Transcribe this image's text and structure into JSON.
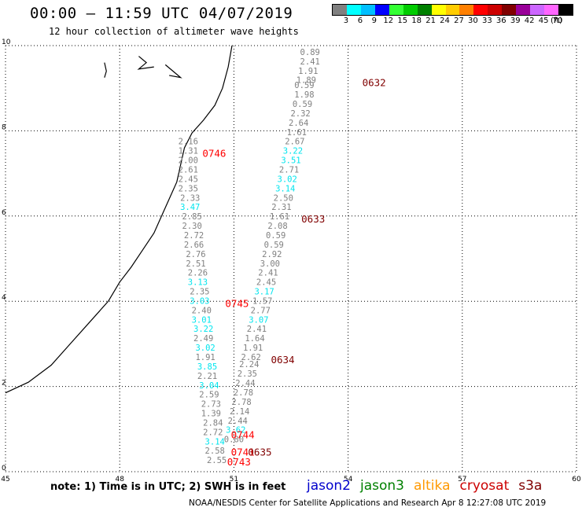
{
  "header": {
    "title": "00:00 – 11:59 UTC 04/07/2019",
    "subtitle": "12 hour collection of altimeter wave heights"
  },
  "legend": {
    "unit": "(ft)",
    "colors": [
      "#808080",
      "#00ffff",
      "#00bfff",
      "#0000ff",
      "#33ff33",
      "#00cc00",
      "#008000",
      "#ffff00",
      "#ffcc00",
      "#ff8000",
      "#ff0000",
      "#cc0000",
      "#800000",
      "#990099",
      "#cc66ff",
      "#ff66ff",
      "#000000"
    ],
    "labels": [
      "3",
      "6",
      "9",
      "12",
      "15",
      "18",
      "21",
      "24",
      "27",
      "30",
      "33",
      "36",
      "39",
      "42",
      "45",
      "70"
    ]
  },
  "axes": {
    "x_ticks": [
      "45",
      "48",
      "51",
      "54",
      "57",
      "60"
    ],
    "y_ticks": [
      "0",
      "2",
      "4",
      "6",
      "8",
      "10"
    ]
  },
  "chart_data": {
    "type": "scatter",
    "xlim": [
      45,
      60
    ],
    "ylim": [
      0,
      10
    ],
    "grid": true,
    "points": [
      {
        "x": 53.0,
        "y": 9.78,
        "v": "0.89",
        "c": "#808080"
      },
      {
        "x": 53.0,
        "y": 9.56,
        "v": "2.41",
        "c": "#808080"
      },
      {
        "x": 52.95,
        "y": 9.34,
        "v": "1.91",
        "c": "#808080"
      },
      {
        "x": 52.9,
        "y": 9.12,
        "v": "1.89",
        "c": "#808080"
      },
      {
        "x": 52.85,
        "y": 9.0,
        "v": "0.59",
        "c": "#808080"
      },
      {
        "x": 52.85,
        "y": 8.78,
        "v": "1.98",
        "c": "#808080"
      },
      {
        "x": 52.8,
        "y": 8.56,
        "v": "0.59",
        "c": "#808080"
      },
      {
        "x": 52.75,
        "y": 8.34,
        "v": "2.32",
        "c": "#808080"
      },
      {
        "x": 52.7,
        "y": 8.12,
        "v": "2.64",
        "c": "#808080"
      },
      {
        "x": 52.65,
        "y": 7.9,
        "v": "1.61",
        "c": "#808080"
      },
      {
        "x": 52.6,
        "y": 7.68,
        "v": "2.67",
        "c": "#808080"
      },
      {
        "x": 52.55,
        "y": 7.46,
        "v": "3.22",
        "c": "#00e5ee"
      },
      {
        "x": 52.5,
        "y": 7.24,
        "v": "3.51",
        "c": "#00e5ee"
      },
      {
        "x": 52.45,
        "y": 7.02,
        "v": "2.71",
        "c": "#808080"
      },
      {
        "x": 52.4,
        "y": 6.8,
        "v": "3.02",
        "c": "#00e5ee"
      },
      {
        "x": 52.35,
        "y": 6.58,
        "v": "3.14",
        "c": "#00e5ee"
      },
      {
        "x": 52.3,
        "y": 6.36,
        "v": "2.50",
        "c": "#808080"
      },
      {
        "x": 52.25,
        "y": 6.14,
        "v": "2.31",
        "c": "#808080"
      },
      {
        "x": 52.2,
        "y": 5.92,
        "v": "1.61",
        "c": "#808080"
      },
      {
        "x": 52.15,
        "y": 5.7,
        "v": "2.08",
        "c": "#808080"
      },
      {
        "x": 52.1,
        "y": 5.48,
        "v": "0.59",
        "c": "#808080"
      },
      {
        "x": 52.05,
        "y": 5.26,
        "v": "0.59",
        "c": "#808080"
      },
      {
        "x": 52.0,
        "y": 5.04,
        "v": "2.92",
        "c": "#808080"
      },
      {
        "x": 51.95,
        "y": 4.82,
        "v": "3.00",
        "c": "#808080"
      },
      {
        "x": 51.9,
        "y": 4.6,
        "v": "2.41",
        "c": "#808080"
      },
      {
        "x": 51.85,
        "y": 4.38,
        "v": "2.45",
        "c": "#808080"
      },
      {
        "x": 51.8,
        "y": 4.16,
        "v": "3.17",
        "c": "#00e5ee"
      },
      {
        "x": 51.75,
        "y": 3.94,
        "v": "1.57",
        "c": "#808080"
      },
      {
        "x": 51.7,
        "y": 3.72,
        "v": "2.77",
        "c": "#808080"
      },
      {
        "x": 51.65,
        "y": 3.5,
        "v": "3.07",
        "c": "#00e5ee"
      },
      {
        "x": 51.6,
        "y": 3.28,
        "v": "2.41",
        "c": "#808080"
      },
      {
        "x": 51.55,
        "y": 3.06,
        "v": "1.64",
        "c": "#808080"
      },
      {
        "x": 51.5,
        "y": 2.84,
        "v": "1.91",
        "c": "#808080"
      },
      {
        "x": 51.45,
        "y": 2.62,
        "v": "2.62",
        "c": "#808080"
      },
      {
        "x": 51.4,
        "y": 2.45,
        "v": "2.24",
        "c": "#808080"
      },
      {
        "x": 51.35,
        "y": 2.23,
        "v": "2.35",
        "c": "#808080"
      },
      {
        "x": 51.3,
        "y": 2.01,
        "v": "2.44",
        "c": "#808080"
      },
      {
        "x": 51.25,
        "y": 1.79,
        "v": "2.78",
        "c": "#808080"
      },
      {
        "x": 51.2,
        "y": 1.57,
        "v": "2.78",
        "c": "#808080"
      },
      {
        "x": 51.15,
        "y": 1.35,
        "v": "2.14",
        "c": "#808080"
      },
      {
        "x": 51.1,
        "y": 1.13,
        "v": "2.44",
        "c": "#808080"
      },
      {
        "x": 51.05,
        "y": 0.91,
        "v": "3.62",
        "c": "#00e5ee"
      },
      {
        "x": 51.0,
        "y": 0.69,
        "v": "0.80",
        "c": "#808080"
      },
      {
        "x": 49.8,
        "y": 7.68,
        "v": "2.16",
        "c": "#808080"
      },
      {
        "x": 49.8,
        "y": 7.46,
        "v": "1.31",
        "c": "#808080"
      },
      {
        "x": 49.8,
        "y": 7.24,
        "v": "2.00",
        "c": "#808080"
      },
      {
        "x": 49.8,
        "y": 7.02,
        "v": "2.61",
        "c": "#808080"
      },
      {
        "x": 49.8,
        "y": 6.8,
        "v": "2.45",
        "c": "#808080"
      },
      {
        "x": 49.8,
        "y": 6.58,
        "v": "2.35",
        "c": "#808080"
      },
      {
        "x": 49.85,
        "y": 6.36,
        "v": "2.33",
        "c": "#808080"
      },
      {
        "x": 49.85,
        "y": 6.14,
        "v": "3.47",
        "c": "#00e5ee"
      },
      {
        "x": 49.9,
        "y": 5.92,
        "v": "2.85",
        "c": "#808080"
      },
      {
        "x": 49.9,
        "y": 5.7,
        "v": "2.30",
        "c": "#808080"
      },
      {
        "x": 49.95,
        "y": 5.48,
        "v": "2.72",
        "c": "#808080"
      },
      {
        "x": 49.95,
        "y": 5.26,
        "v": "2.66",
        "c": "#808080"
      },
      {
        "x": 50.0,
        "y": 5.04,
        "v": "2.76",
        "c": "#808080"
      },
      {
        "x": 50.0,
        "y": 4.82,
        "v": "2.51",
        "c": "#808080"
      },
      {
        "x": 50.05,
        "y": 4.6,
        "v": "2.26",
        "c": "#808080"
      },
      {
        "x": 50.05,
        "y": 4.38,
        "v": "3.13",
        "c": "#00e5ee"
      },
      {
        "x": 50.1,
        "y": 4.16,
        "v": "2.35",
        "c": "#808080"
      },
      {
        "x": 50.1,
        "y": 3.94,
        "v": "3.03",
        "c": "#00e5ee"
      },
      {
        "x": 50.15,
        "y": 3.72,
        "v": "2.40",
        "c": "#808080"
      },
      {
        "x": 50.15,
        "y": 3.5,
        "v": "3.01",
        "c": "#00e5ee"
      },
      {
        "x": 50.2,
        "y": 3.28,
        "v": "3.22",
        "c": "#00e5ee"
      },
      {
        "x": 50.2,
        "y": 3.06,
        "v": "2.49",
        "c": "#808080"
      },
      {
        "x": 50.25,
        "y": 2.84,
        "v": "3.02",
        "c": "#00e5ee"
      },
      {
        "x": 50.25,
        "y": 2.62,
        "v": "1.91",
        "c": "#808080"
      },
      {
        "x": 50.3,
        "y": 2.4,
        "v": "3.85",
        "c": "#00e5ee"
      },
      {
        "x": 50.3,
        "y": 2.18,
        "v": "2.21",
        "c": "#808080"
      },
      {
        "x": 50.35,
        "y": 1.96,
        "v": "3.04",
        "c": "#00e5ee"
      },
      {
        "x": 50.35,
        "y": 1.74,
        "v": "2.59",
        "c": "#808080"
      },
      {
        "x": 50.4,
        "y": 1.52,
        "v": "2.73",
        "c": "#808080"
      },
      {
        "x": 50.4,
        "y": 1.3,
        "v": "1.39",
        "c": "#808080"
      },
      {
        "x": 50.45,
        "y": 1.08,
        "v": "2.84",
        "c": "#808080"
      },
      {
        "x": 50.45,
        "y": 0.86,
        "v": "2.72",
        "c": "#808080"
      },
      {
        "x": 50.5,
        "y": 0.64,
        "v": "3.14",
        "c": "#00e5ee"
      },
      {
        "x": 50.5,
        "y": 0.42,
        "v": "2.58",
        "c": "#808080"
      },
      {
        "x": 50.55,
        "y": 0.2,
        "v": "2.55",
        "c": "#808080"
      }
    ],
    "time_labels": [
      {
        "x": 54.0,
        "y": 9.12,
        "t": "0632",
        "c": "#800000"
      },
      {
        "x": 49.8,
        "y": 7.46,
        "t": "0746",
        "c": "#ff0000"
      },
      {
        "x": 52.4,
        "y": 5.92,
        "t": "0633",
        "c": "#800000"
      },
      {
        "x": 50.4,
        "y": 3.94,
        "t": "0745",
        "c": "#ff0000"
      },
      {
        "x": 51.6,
        "y": 2.62,
        "t": "0634",
        "c": "#800000"
      },
      {
        "x": 50.55,
        "y": 0.86,
        "t": "0744",
        "c": "#ff0000"
      },
      {
        "x": 50.55,
        "y": 0.45,
        "t": "0741",
        "c": "#ff0000"
      },
      {
        "x": 51.0,
        "y": 0.45,
        "t": "0635",
        "c": "#800000"
      },
      {
        "x": 50.45,
        "y": 0.22,
        "t": "0743",
        "c": "#ff0000"
      }
    ]
  },
  "note": "note: 1) Time is in UTC; 2) SWH is in feet",
  "satellites": [
    {
      "name": "jason2",
      "color": "#0000cc"
    },
    {
      "name": "jason3",
      "color": "#008000"
    },
    {
      "name": "altika",
      "color": "#ff9900"
    },
    {
      "name": "cryosat",
      "color": "#cc0000"
    },
    {
      "name": "s3a",
      "color": "#800000"
    }
  ],
  "footer": "NOAA/NESDIS Center for Satellite Applications and Research   Apr  8 12:27:08 UTC 2019"
}
